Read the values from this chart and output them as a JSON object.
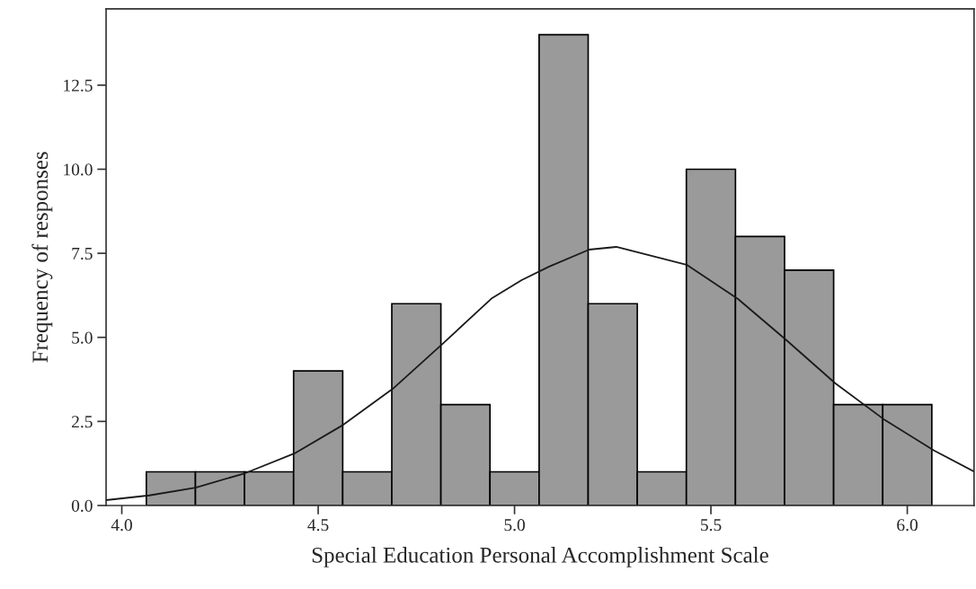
{
  "chart_data": {
    "type": "histogram",
    "xlabel": "Special Education Personal Accomplishment Scale",
    "ylabel": "Frequency of responses",
    "bins": [
      4.0625,
      4.1875,
      4.3125,
      4.4375,
      4.5625,
      4.6875,
      4.8125,
      4.9375,
      5.0625,
      5.1875,
      5.3125,
      5.4375,
      5.5625,
      5.6875,
      5.8125,
      5.9375,
      6.0625
    ],
    "values": [
      1,
      1,
      1,
      4,
      1,
      6,
      3,
      1,
      14,
      6,
      1,
      10,
      8,
      7,
      3,
      3
    ],
    "color": "#9a9a9a",
    "series": [
      {
        "type": "line",
        "color": "#1a1a1a",
        "x": [
          3.96,
          4.07,
          4.188,
          4.314,
          4.44,
          4.564,
          4.693,
          4.817,
          4.943,
          5.018,
          5.087,
          5.19,
          5.259,
          5.438,
          5.569,
          5.69,
          5.817,
          5.943,
          6.069,
          6.17
        ],
        "values": [
          0.16,
          0.3,
          0.53,
          0.96,
          1.55,
          2.4,
          3.5,
          4.81,
          6.17,
          6.7,
          7.1,
          7.61,
          7.69,
          7.16,
          6.14,
          4.94,
          3.63,
          2.54,
          1.63,
          1.01
        ]
      }
    ],
    "xlim": [
      3.96,
      6.17
    ],
    "ylim": [
      0,
      14.77
    ],
    "xticks": [
      {
        "value": 4.0,
        "label": "4.0"
      },
      {
        "value": 4.5,
        "label": "4.5"
      },
      {
        "value": 5.0,
        "label": "5.0"
      },
      {
        "value": 5.5,
        "label": "5.5"
      },
      {
        "value": 6.0,
        "label": "6.0"
      }
    ],
    "yticks": [
      {
        "value": 0,
        "label": "0.0"
      },
      {
        "value": 2.5,
        "label": "2.5"
      },
      {
        "value": 5.0,
        "label": "5.0"
      },
      {
        "value": 7.5,
        "label": "7.5"
      },
      {
        "value": 10.0,
        "label": "10.0"
      },
      {
        "value": 12.5,
        "label": "12.5"
      }
    ],
    "grid": false,
    "legend": false
  }
}
